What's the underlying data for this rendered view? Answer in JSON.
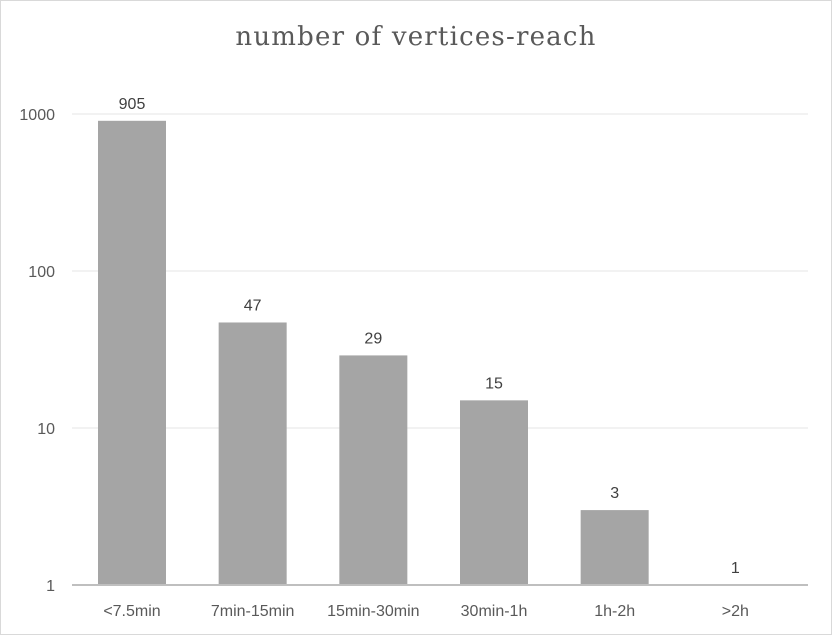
{
  "chart_data": {
    "type": "bar",
    "title": "number of vertices-reach",
    "xlabel": "",
    "ylabel": "",
    "y_scale": "log",
    "ylim": [
      1,
      1000
    ],
    "y_ticks": [
      1,
      10,
      100,
      1000
    ],
    "y_tick_labels": [
      "1",
      "10",
      "100",
      "1000"
    ],
    "categories": [
      "<7.5min",
      "7min-15min",
      "15min-30min",
      "30min-1h",
      "1h-2h",
      ">2h"
    ],
    "values": [
      905,
      47,
      29,
      15,
      3,
      1
    ],
    "data_labels": [
      "905",
      "47",
      "29",
      "15",
      "3",
      "1"
    ],
    "bar_color": "#a5a5a5",
    "grid": true,
    "legend": "none"
  }
}
